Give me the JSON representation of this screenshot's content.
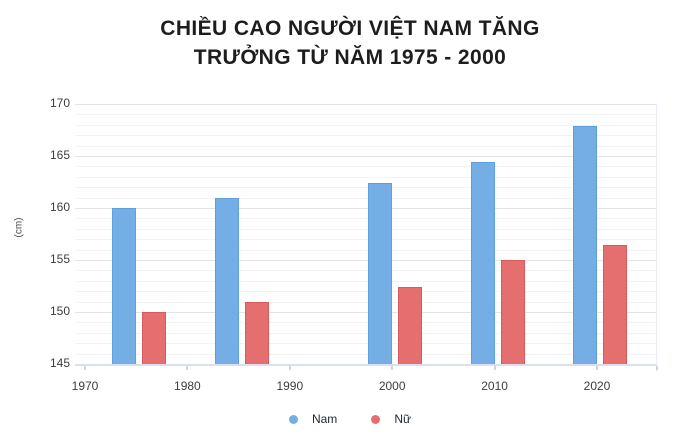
{
  "title": {
    "line1": "CHIỀU CAO NGƯỜI VIỆT NAM TĂNG",
    "line2": "TRƯỞNG TỪ NĂM 1975 - 2000"
  },
  "y_axis": {
    "label": "(cm)",
    "ticks": [
      170,
      165,
      160,
      155,
      150,
      145
    ],
    "min": 145,
    "max": 170
  },
  "x_axis": {
    "ticks": [
      1970,
      1980,
      1990,
      2000,
      2010,
      2020
    ]
  },
  "legend": {
    "position": "bottom",
    "items": [
      {
        "label": "Nam",
        "color": "#74AEE5"
      },
      {
        "label": "Nữ",
        "color": "#E56E6E"
      }
    ]
  },
  "colors": {
    "background": "#ffffff",
    "title_text": "#1d1d1d",
    "tick_text": "#3d3d3d",
    "grid_minor": "#f3f3f3",
    "grid_major": "#e4e4e4",
    "axis_line": "#dbdff2",
    "nam_fill": "#74AEE5",
    "nam_border": "#5FA0DC",
    "nu_fill": "#E56E6E",
    "nu_border": "#D85A5A"
  },
  "chart_data": {
    "type": "bar",
    "title": "CHIỀU CAO NGƯỜI VIỆT NAM TĂNG TRƯỞNG TỪ NĂM 1975 - 2000",
    "x": [
      1975,
      1985,
      2000,
      2010,
      2020
    ],
    "series": [
      {
        "name": "Nam",
        "fill": "#74AEE5",
        "border": "#5FA0DC",
        "values": [
          160.0,
          161.0,
          162.4,
          164.4,
          167.9
        ]
      },
      {
        "name": "Nữ",
        "fill": "#E56E6E",
        "border": "#D85A5A",
        "values": [
          150.0,
          151.0,
          152.4,
          155.0,
          156.4
        ]
      }
    ],
    "xlabel": "",
    "ylabel": "(cm)",
    "ylim": [
      145,
      170
    ],
    "xlim": [
      1969,
      2025.7
    ],
    "x_ticks": [
      1970,
      1980,
      1990,
      2000,
      2010,
      2020
    ],
    "y_ticks": [
      145,
      150,
      155,
      160,
      165,
      170
    ],
    "grid": "horizontal, minor every 1 cm, major every 5 cm",
    "legend_position": "bottom"
  }
}
